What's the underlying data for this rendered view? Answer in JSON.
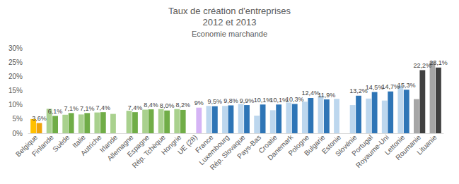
{
  "chart_data": {
    "type": "bar",
    "title": "Taux de création d'entreprises\n2012 et 2013",
    "subtitle": "Economie marchande",
    "categories": [
      "Belgique",
      "Finlande",
      "Suède",
      "Italie",
      "Autriche",
      "Irlande",
      "Allemagne",
      "Espagne",
      "Rép. Tchèque",
      "Hongrie",
      "UE (28)",
      "France",
      "Luxembourg",
      "Rép. Slovaque",
      "Pays-Bas",
      "Croatie",
      "Danemark",
      "Pologne",
      "Bulgarie",
      "Estonie",
      "Slovénie",
      "Portugal",
      "Royaume-Uni",
      "Lettonie",
      "Roumanie",
      "Lituanie"
    ],
    "series": [
      {
        "name": "2012",
        "values": [
          5.0,
          8.6,
          6.5,
          6.6,
          7.3,
          6.8,
          7.9,
          8.3,
          8.5,
          8.5,
          null,
          9.6,
          9.6,
          10.3,
          6.2,
          8.1,
          10.8,
          11.1,
          13.2,
          12.1,
          9.9,
          12.2,
          11.5,
          16.8,
          12.0,
          25.2
        ],
        "colors": [
          "#ffc000",
          "#a9d18e",
          "#a9d18e",
          "#a9d18e",
          "#a9d18e",
          "#a9d18e",
          "#a9d18e",
          "#a9d18e",
          "#a9d18e",
          "#a9d18e",
          "#d5b4f5",
          "#bdd7ee",
          "#bdd7ee",
          "#bdd7ee",
          "#bdd7ee",
          "#bdd7ee",
          "#bdd7ee",
          "#bdd7ee",
          "#bdd7ee",
          "#bdd7ee",
          "#bdd7ee",
          "#bdd7ee",
          "#bdd7ee",
          "#bdd7ee",
          "#a6a6a6",
          "#a6a6a6"
        ]
      },
      {
        "name": "2013",
        "values": [
          3.6,
          6.1,
          7.1,
          7.1,
          7.4,
          null,
          7.4,
          8.4,
          8.0,
          8.2,
          9,
          9.5,
          9.8,
          9.9,
          10.1,
          10.1,
          10.3,
          12.4,
          11.9,
          null,
          13.2,
          14.5,
          14.7,
          15.3,
          22.2,
          23.1
        ],
        "value_labels": [
          "3,6%",
          "6,1%",
          "7,1%",
          "7,1%",
          "7,4%",
          null,
          "7,4%",
          "8,4%",
          "8,0%",
          "8,2%",
          "9%",
          "9,5%",
          "9,8%",
          "9,9%",
          "10,1%",
          "10,1%",
          "10,3%",
          "12,4%",
          "11,9%",
          null,
          "13,2%",
          "14,5%",
          "14,7%",
          "15,3%",
          "22,2%",
          "23,1%"
        ],
        "colors": [
          "#f0a30a",
          "#70ad47",
          "#70ad47",
          "#70ad47",
          "#70ad47",
          "#70ad47",
          "#70ad47",
          "#70ad47",
          "#70ad47",
          "#70ad47",
          "#d5b4f5",
          "#2e75b6",
          "#2e75b6",
          "#2e75b6",
          "#2e75b6",
          "#2e75b6",
          "#2e75b6",
          "#2e75b6",
          "#2e75b6",
          "#2e75b6",
          "#2e75b6",
          "#2e75b6",
          "#2e75b6",
          "#2e75b6",
          "#404040",
          "#404040"
        ]
      }
    ],
    "ylim": [
      0,
      30
    ],
    "yticks": [
      {
        "value": 0,
        "label": "0%"
      },
      {
        "value": 5,
        "label": "5%"
      },
      {
        "value": 10,
        "label": "10%"
      },
      {
        "value": 15,
        "label": "15%"
      },
      {
        "value": 20,
        "label": "20%"
      },
      {
        "value": 25,
        "label": "25%"
      },
      {
        "value": 30,
        "label": "30%"
      }
    ],
    "grid": false,
    "data_labels": true
  }
}
